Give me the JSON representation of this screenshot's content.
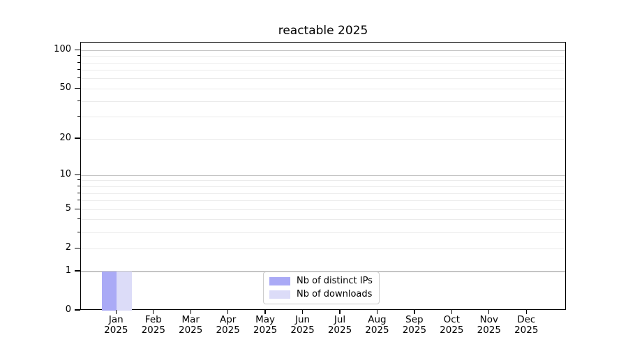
{
  "chart_data": {
    "type": "bar",
    "title": "reactable 2025",
    "categories": [
      "Jan 2025",
      "Feb 2025",
      "Mar 2025",
      "Apr 2025",
      "May 2025",
      "Jun 2025",
      "Jul 2025",
      "Aug 2025",
      "Sep 2025",
      "Oct 2025",
      "Nov 2025",
      "Dec 2025"
    ],
    "series": [
      {
        "name": "Nb of distinct IPs",
        "color": "#aaaaf6",
        "values": [
          1,
          0,
          0,
          0,
          0,
          0,
          0,
          0,
          0,
          0,
          0,
          0
        ]
      },
      {
        "name": "Nb of downloads",
        "color": "#dcdcf8",
        "values": [
          1,
          0,
          0,
          0,
          0,
          0,
          0,
          0,
          0,
          0,
          0,
          0
        ]
      }
    ],
    "xlabel": "",
    "ylabel": "",
    "yscale": "log1p",
    "ylim": [
      0,
      115
    ],
    "y_tick_values": [
      100,
      50,
      20,
      10,
      5,
      2,
      1,
      0
    ],
    "y_tick_labels": [
      "100",
      "50",
      "20",
      "10",
      "5",
      "2",
      "1",
      "0"
    ],
    "grid_major_values": [
      1,
      10,
      100
    ],
    "grid_minor_values": [
      2,
      3,
      4,
      5,
      6,
      7,
      8,
      9,
      20,
      30,
      40,
      50,
      60,
      70,
      80,
      90
    ],
    "grid_color_major": "#c4c4c4",
    "grid_color_minor": "#ebebeb",
    "background_color": "#ffffff",
    "legend_position": "lower center"
  }
}
